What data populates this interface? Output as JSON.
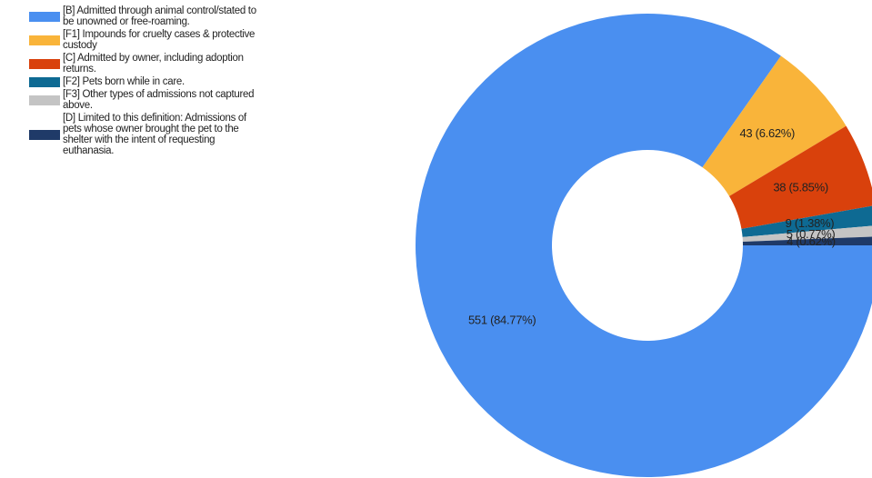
{
  "chart_data": {
    "type": "donut",
    "series": [
      {
        "name": "[B] Admitted through animal control/stated to be unowned or free-roaming.",
        "color": "#4a8ff0"
      },
      {
        "name": "[F1] Impounds for cruelty cases & protective custody",
        "color": "#f9b43a"
      },
      {
        "name": "[C] Admitted by owner, including adoption returns.",
        "color": "#d9410c"
      },
      {
        "name": "[F2] Pets born while in care.",
        "color": "#0e6a93"
      },
      {
        "name": "[F3] Other types of admissions not captured above.",
        "color": "#c4c4c4"
      },
      {
        "name": "[D] Limited to this definition: Admissions of pets whose owner brought the pet to the shelter with the intent of requesting euthanasia.",
        "color": "#1f3a68"
      }
    ],
    "values": [
      551,
      43,
      38,
      9,
      5,
      4
    ],
    "value_labels": [
      "551 (84.77%)",
      "43 (6.62%)",
      "38 (5.85%)",
      "9 (1.38%)",
      "5 (0.77%)",
      "4 (0.62%)"
    ],
    "legend": "left"
  }
}
